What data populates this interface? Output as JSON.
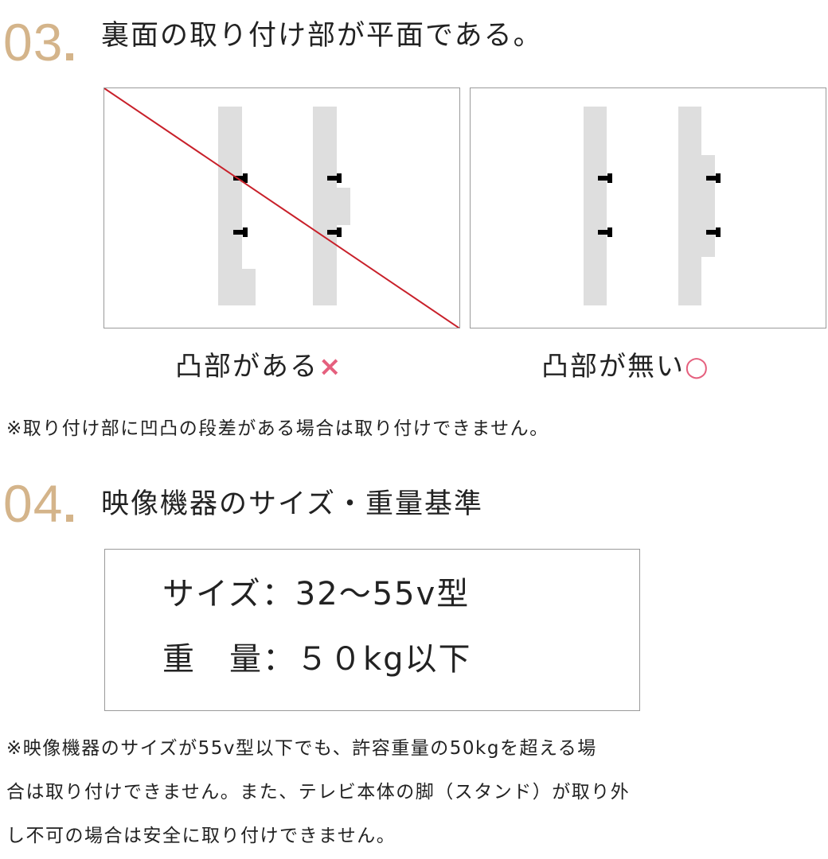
{
  "section3": {
    "number": "03",
    "title": "裏面の取り付け部が平面である。",
    "bad_label": "凸部がある",
    "good_label": "凸部が無い",
    "bad_mark": "×",
    "good_mark": "○",
    "note": "※取り付け部に凹凸の段差がある場合は取り付けできません。"
  },
  "section4": {
    "number": "04",
    "title": "映像機器のサイズ・重量基準",
    "size_line": "サイズ：32〜55v型",
    "weight_line": "重　量：５０kg以下",
    "note_lines": [
      "※映像機器のサイズが55v型以下でも、許容重量の50kgを超える場",
      "合は取り付けできません。また、テレビ本体の脚（スタンド）が取り外",
      "し不可の場合は安全に取り付けできません。"
    ]
  },
  "colors": {
    "accent": "#d4b48a",
    "mark": "#e5607e",
    "cross_line": "#c8202a"
  }
}
